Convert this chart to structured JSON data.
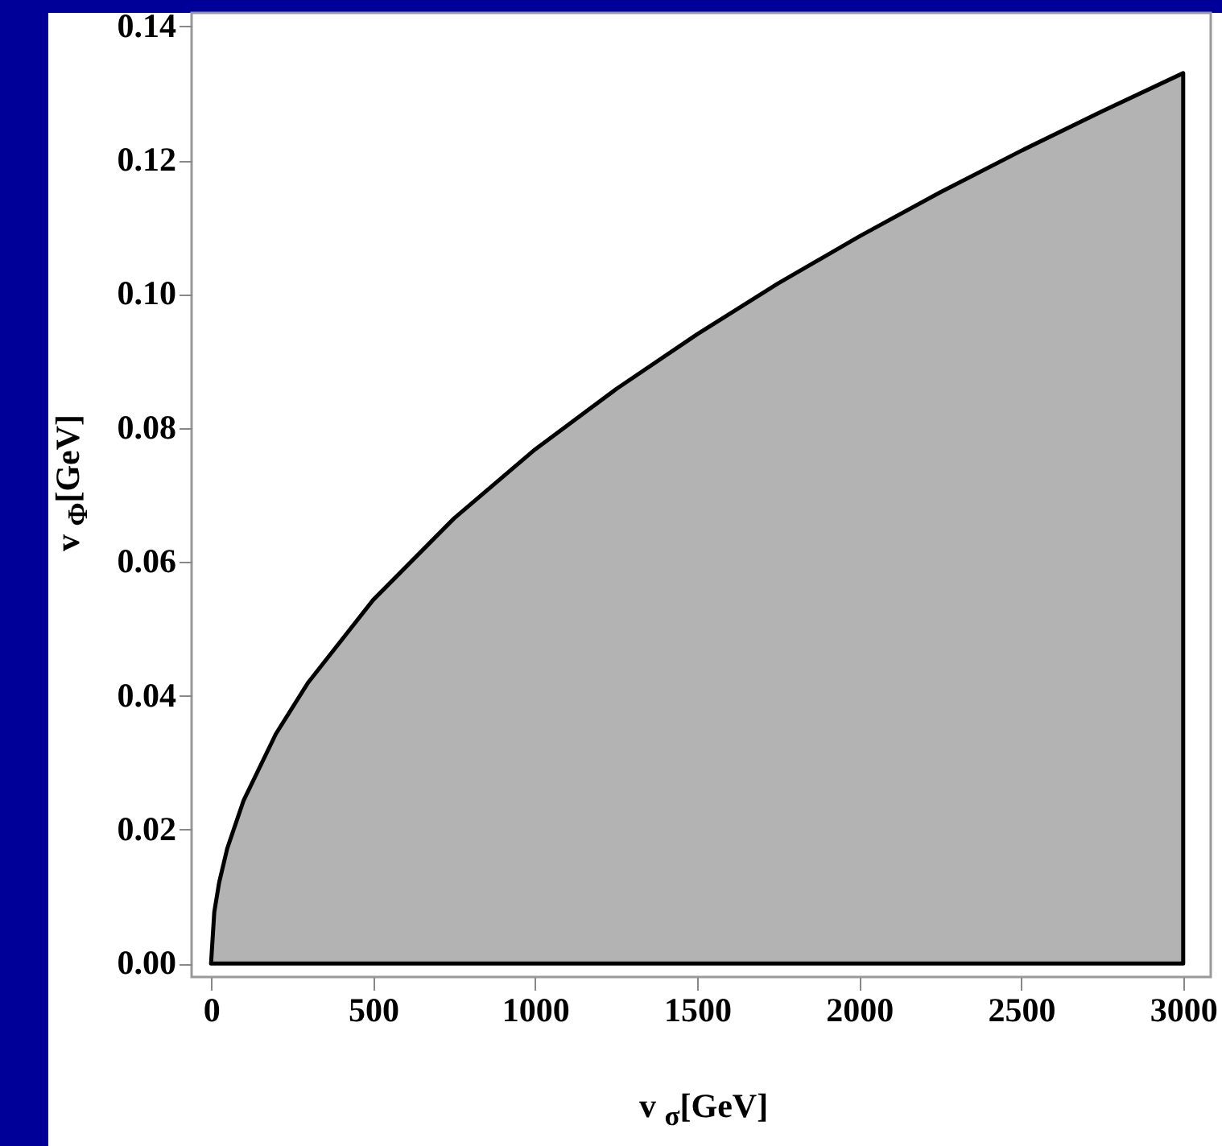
{
  "chart_data": {
    "type": "area",
    "xlabel": "v $_{σ}$[GeV]",
    "ylabel": "v $_{Φ}$[GeV]",
    "x": [
      0,
      10,
      25,
      50,
      100,
      200,
      300,
      500,
      750,
      1000,
      1250,
      1500,
      1750,
      2000,
      2250,
      2500,
      2750,
      3000
    ],
    "series": [
      {
        "color": "#b3b3b3",
        "values": [
          0,
          0.0077,
          0.0121,
          0.0172,
          0.0243,
          0.0343,
          0.042,
          0.0543,
          0.0665,
          0.0768,
          0.0858,
          0.094,
          0.1016,
          0.1086,
          0.1152,
          0.1214,
          0.1273,
          0.133
        ]
      }
    ],
    "xlim": [
      -60,
      3085
    ],
    "ylim": [
      -0.002,
      0.142
    ],
    "xticks": [
      0,
      500,
      1000,
      1500,
      2000,
      2500,
      3000
    ],
    "yticks": [
      {
        "value": 0,
        "label": "0.00"
      },
      {
        "value": 0.02,
        "label": "0.02"
      },
      {
        "value": 0.04,
        "label": "0.04"
      },
      {
        "value": 0.06,
        "label": "0.06"
      },
      {
        "value": 0.08,
        "label": "0.08"
      },
      {
        "value": 0.1,
        "label": "0.10"
      },
      {
        "value": 0.12,
        "label": "0.12"
      },
      {
        "value": 0.14,
        "label": "0.14"
      }
    ],
    "grid": false
  }
}
